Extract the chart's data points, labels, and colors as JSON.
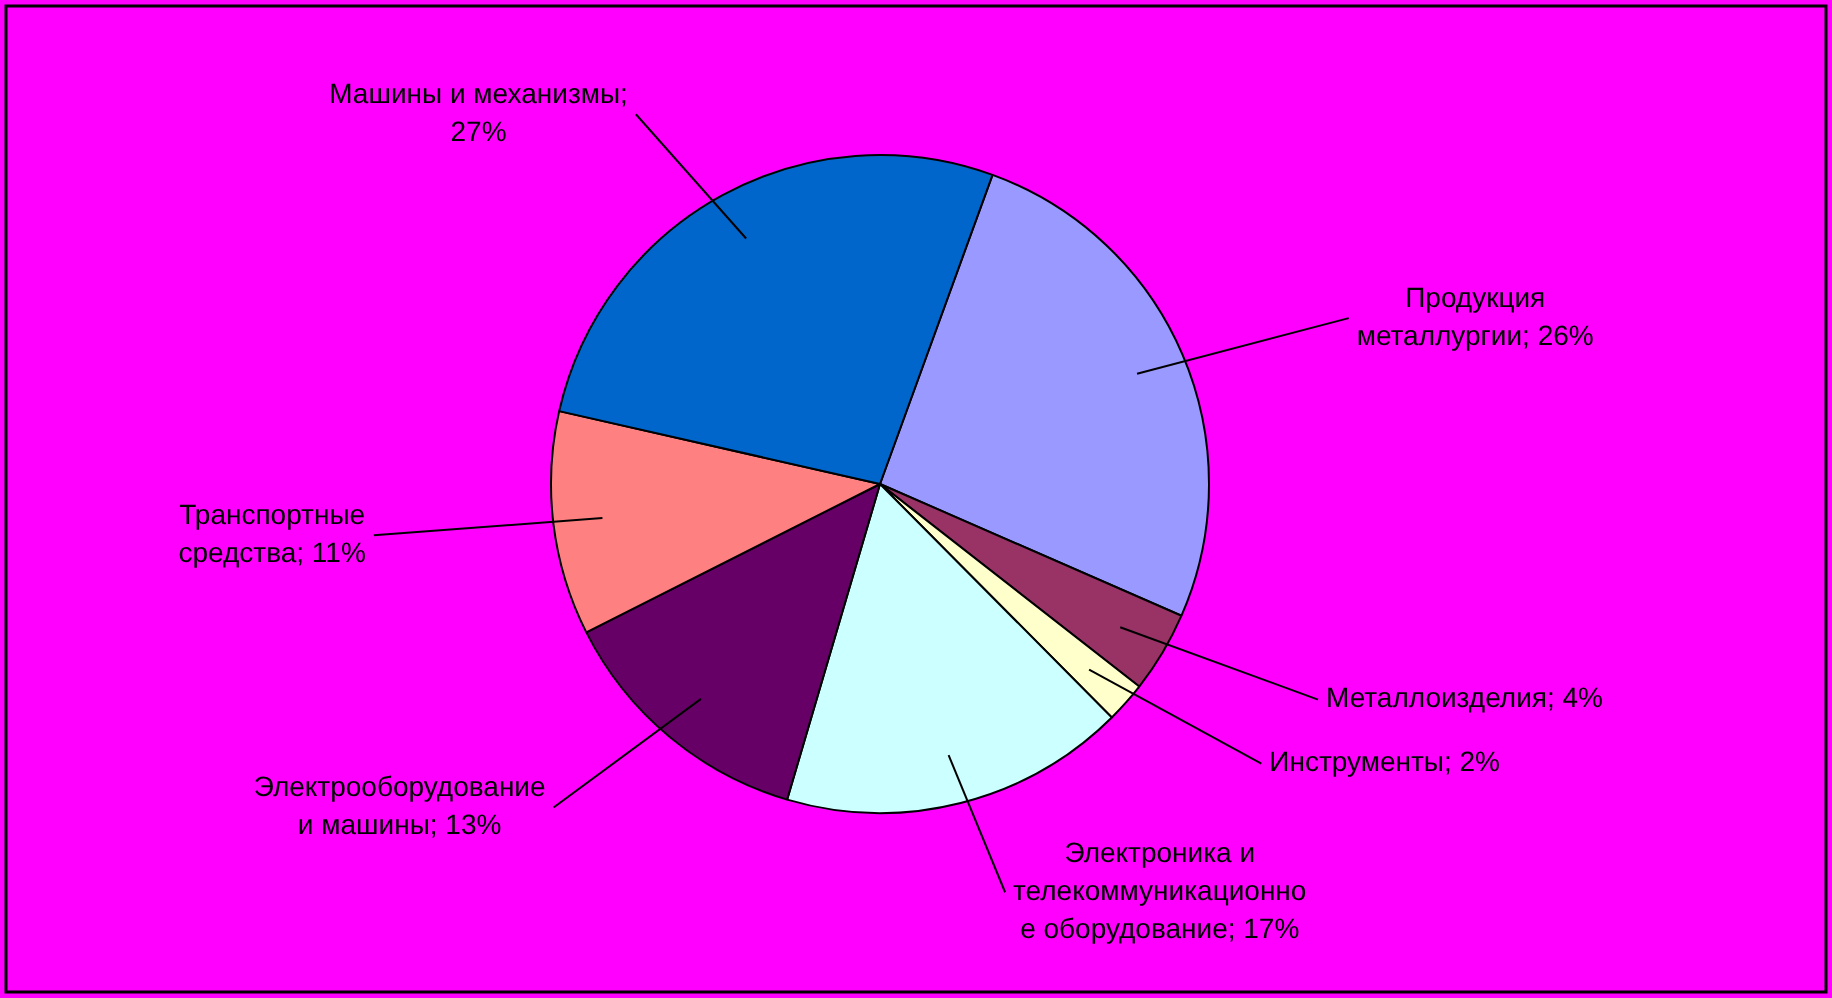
{
  "chart_data": {
    "type": "pie",
    "categories": [
      "Продукция металлургии; 26%",
      "Металлоизделия; 4%",
      "Инструменты; 2%",
      "Электроника и телекоммуникационное оборудование; 17%",
      "Электрооборудование и машины; 13%",
      "Транспортные средства; 11%",
      "Машины и механизмы; 27%"
    ],
    "values": [
      26,
      4,
      2,
      17,
      13,
      11,
      27
    ],
    "colors": [
      "#9999ff",
      "#993366",
      "#ffffcc",
      "#ccffff",
      "#660066",
      "#ff8080",
      "#0066cc"
    ]
  }
}
